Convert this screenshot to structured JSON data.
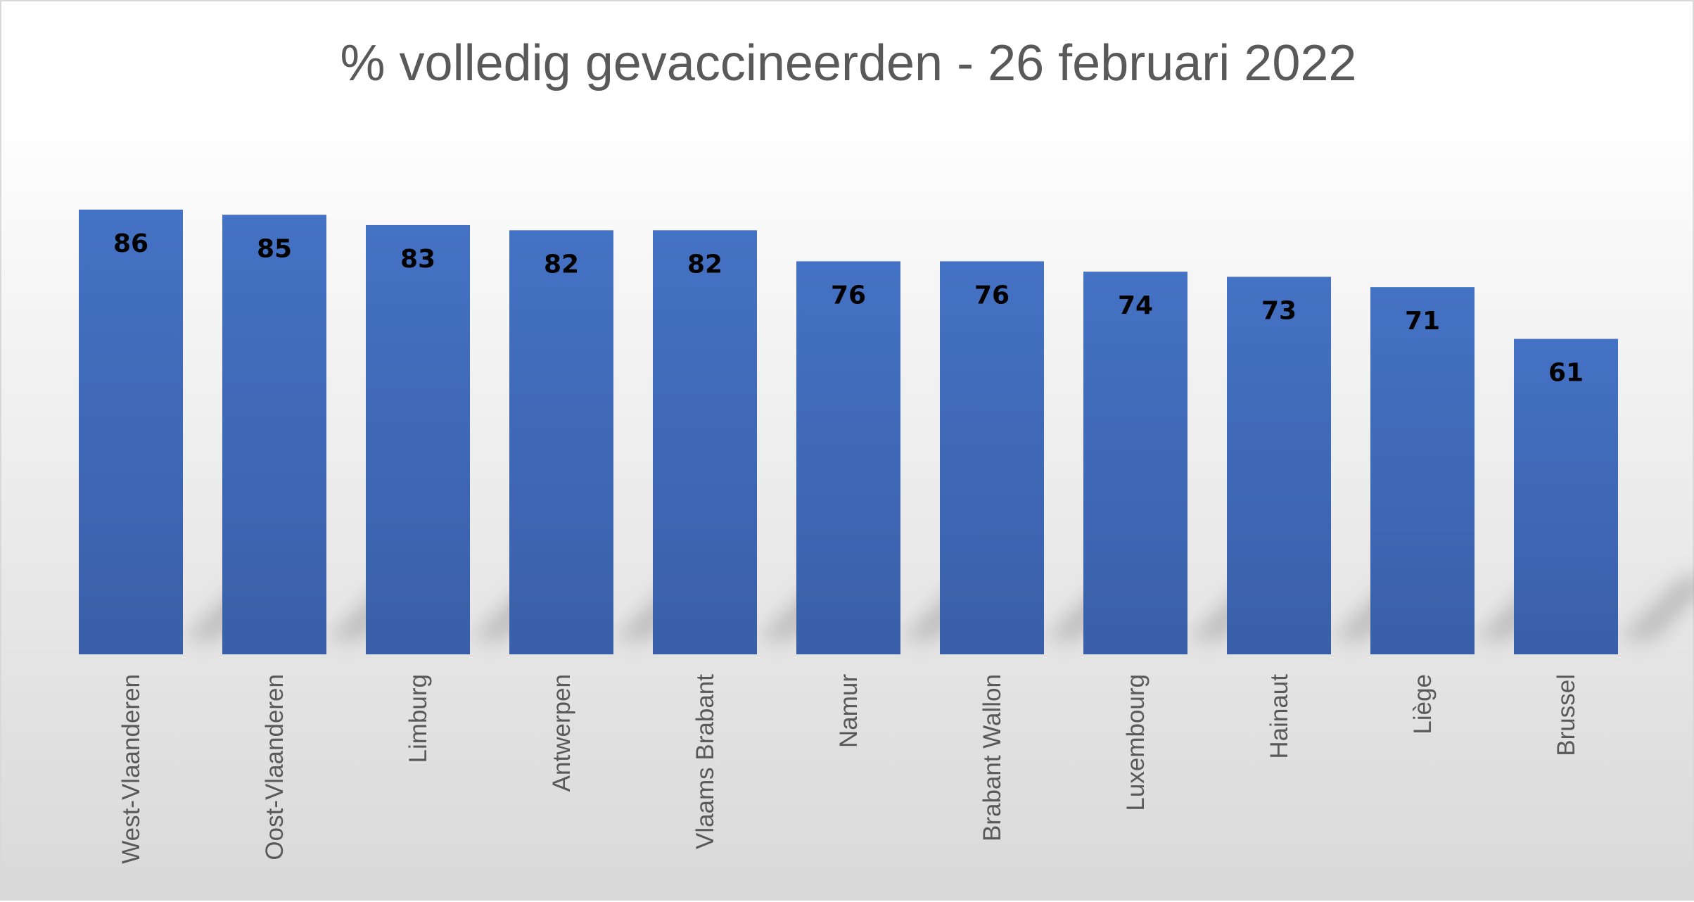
{
  "chart_data": {
    "type": "bar",
    "title": "% volledig gevaccineerden - 26 februari 2022",
    "xlabel": "",
    "ylabel": "",
    "categories": [
      "West-Vlaanderen",
      "Oost-Vlaanderen",
      "Limburg",
      "Antwerpen",
      "Vlaams Brabant",
      "Namur",
      "Brabant Wallon",
      "Luxembourg",
      "Hainaut",
      "Liège",
      "Brussel"
    ],
    "values": [
      86,
      85,
      83,
      82,
      82,
      76,
      76,
      74,
      73,
      71,
      61
    ],
    "ylim": [
      0,
      100
    ],
    "grid": false,
    "legend": "none",
    "data_labels": true,
    "colors": {
      "bar_top": "#4472C4",
      "bar_bottom": "#3A5FA8",
      "title": "#595959",
      "tick_label": "#595959",
      "data_label": "#000000",
      "shadow": "#9c9c9c"
    }
  }
}
